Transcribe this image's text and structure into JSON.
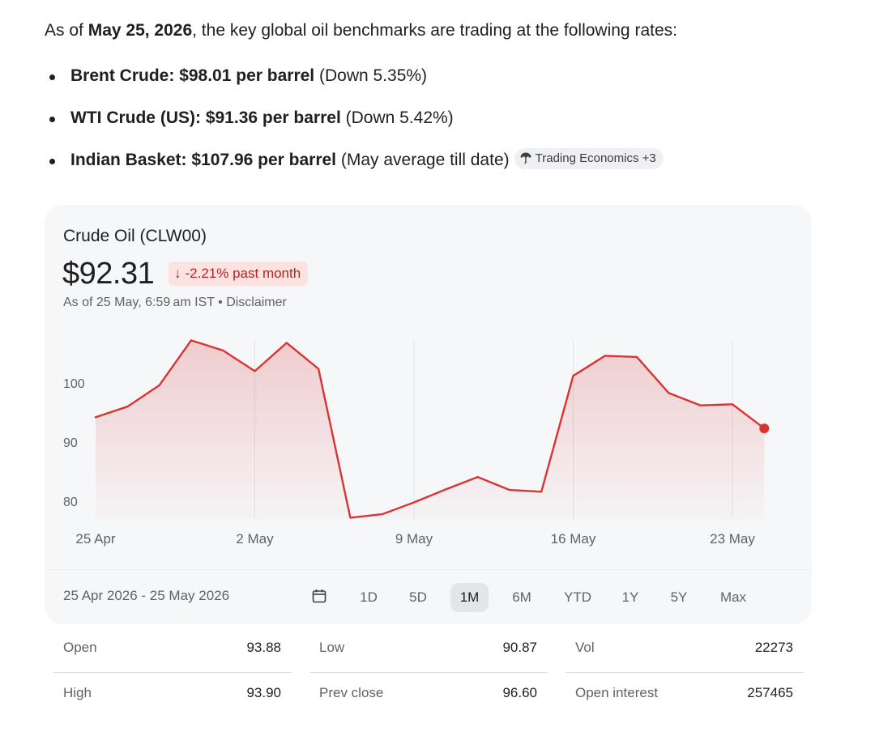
{
  "intro": {
    "prefix": "As of ",
    "date": "May 25, 2026",
    "suffix": ", the key global oil benchmarks are trading at the following rates:"
  },
  "benchmarks": [
    {
      "name": "Brent Crude:",
      "price": "$98.01 per barrel",
      "note": "(Down 5.35%)"
    },
    {
      "name": "WTI Crude (US):",
      "price": "$91.36 per barrel",
      "note": "(Down 5.42%)"
    },
    {
      "name": "Indian Basket:",
      "price": "$107.96 per barrel",
      "note": "(May average till date)"
    }
  ],
  "source_chip": {
    "label": "Trading Economics +3",
    "icon": "umbrella-icon"
  },
  "quote": {
    "title": "Crude Oil (CLW00)",
    "price": "$92.31",
    "change": "-2.21% past month",
    "change_icon": "arrow-down-icon",
    "as_of": "As of 25 May, 6:59 am IST • Disclaimer"
  },
  "colors": {
    "line": "#d93434",
    "badge_bg": "#fce3e2",
    "badge_text": "#b3261e",
    "card_bg": "#f6f7f9"
  },
  "chart_data": {
    "type": "area",
    "x_labels": [
      "25 Apr",
      "2 May",
      "9 May",
      "16 May",
      "23 May"
    ],
    "x_day_offsets": [
      0,
      7,
      14,
      21,
      28
    ],
    "y_ticks": [
      100,
      90,
      80
    ],
    "ylim": [
      74,
      112
    ],
    "grid": "vertical at x labels",
    "x": [
      0,
      1.4,
      2.8,
      4.2,
      5.6,
      7,
      8.4,
      9.8,
      11.2,
      12.6,
      14,
      15.4,
      16.8,
      18.2,
      19.6,
      21,
      22.4,
      23.8,
      25.2,
      26.6,
      28,
      29.4
    ],
    "values": [
      94.2,
      96.0,
      99.6,
      107.2,
      105.5,
      102.0,
      106.8,
      102.4,
      77.2,
      77.8,
      79.8,
      82.0,
      84.1,
      81.9,
      81.6,
      101.2,
      104.6,
      104.4,
      98.3,
      96.2,
      96.4,
      92.31
    ],
    "last_point_marker": true
  },
  "range": {
    "label": "25 Apr 2026 - 25 May 2026",
    "calendar_icon": "calendar-icon",
    "timeframes": [
      "1D",
      "5D",
      "1M",
      "6M",
      "YTD",
      "1Y",
      "5Y",
      "Max"
    ],
    "active": "1M"
  },
  "stats": [
    [
      {
        "k": "Open",
        "v": "93.88"
      },
      {
        "k": "High",
        "v": "93.90"
      }
    ],
    [
      {
        "k": "Low",
        "v": "90.87"
      },
      {
        "k": "Prev close",
        "v": "96.60"
      }
    ],
    [
      {
        "k": "Vol",
        "v": "22273"
      },
      {
        "k": "Open interest",
        "v": "257465"
      }
    ]
  ]
}
